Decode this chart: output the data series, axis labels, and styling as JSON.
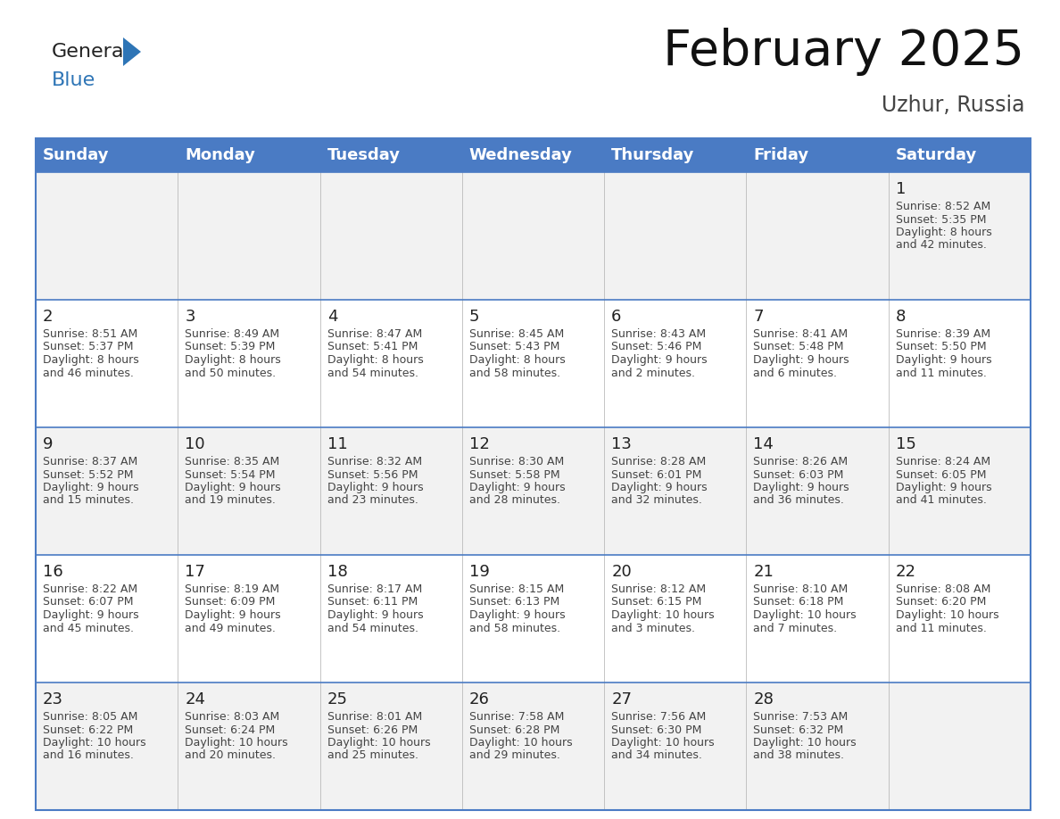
{
  "title": "February 2025",
  "subtitle": "Uzhur, Russia",
  "header_bg": "#4A7BC4",
  "header_text_color": "#FFFFFF",
  "days_of_week": [
    "Sunday",
    "Monday",
    "Tuesday",
    "Wednesday",
    "Thursday",
    "Friday",
    "Saturday"
  ],
  "title_fontsize": 40,
  "subtitle_fontsize": 17,
  "header_fontsize": 13,
  "cell_day_fontsize": 13,
  "cell_info_fontsize": 9,
  "logo_general_color": "#222222",
  "logo_blue_color": "#2E75B6",
  "logo_triangle_color": "#2E75B6",
  "grid_color": "#4A7BC4",
  "row0_bg": "#F2F2F2",
  "row1_bg": "#FFFFFF",
  "row2_bg": "#F2F2F2",
  "row3_bg": "#FFFFFF",
  "row4_bg": "#F2F2F2",
  "calendar": [
    [
      null,
      null,
      null,
      null,
      null,
      null,
      {
        "day": 1,
        "sunrise": "8:52 AM",
        "sunset": "5:35 PM",
        "daylight": "8 hours and 42 minutes."
      }
    ],
    [
      {
        "day": 2,
        "sunrise": "8:51 AM",
        "sunset": "5:37 PM",
        "daylight": "8 hours and 46 minutes."
      },
      {
        "day": 3,
        "sunrise": "8:49 AM",
        "sunset": "5:39 PM",
        "daylight": "8 hours and 50 minutes."
      },
      {
        "day": 4,
        "sunrise": "8:47 AM",
        "sunset": "5:41 PM",
        "daylight": "8 hours and 54 minutes."
      },
      {
        "day": 5,
        "sunrise": "8:45 AM",
        "sunset": "5:43 PM",
        "daylight": "8 hours and 58 minutes."
      },
      {
        "day": 6,
        "sunrise": "8:43 AM",
        "sunset": "5:46 PM",
        "daylight": "9 hours and 2 minutes."
      },
      {
        "day": 7,
        "sunrise": "8:41 AM",
        "sunset": "5:48 PM",
        "daylight": "9 hours and 6 minutes."
      },
      {
        "day": 8,
        "sunrise": "8:39 AM",
        "sunset": "5:50 PM",
        "daylight": "9 hours and 11 minutes."
      }
    ],
    [
      {
        "day": 9,
        "sunrise": "8:37 AM",
        "sunset": "5:52 PM",
        "daylight": "9 hours and 15 minutes."
      },
      {
        "day": 10,
        "sunrise": "8:35 AM",
        "sunset": "5:54 PM",
        "daylight": "9 hours and 19 minutes."
      },
      {
        "day": 11,
        "sunrise": "8:32 AM",
        "sunset": "5:56 PM",
        "daylight": "9 hours and 23 minutes."
      },
      {
        "day": 12,
        "sunrise": "8:30 AM",
        "sunset": "5:58 PM",
        "daylight": "9 hours and 28 minutes."
      },
      {
        "day": 13,
        "sunrise": "8:28 AM",
        "sunset": "6:01 PM",
        "daylight": "9 hours and 32 minutes."
      },
      {
        "day": 14,
        "sunrise": "8:26 AM",
        "sunset": "6:03 PM",
        "daylight": "9 hours and 36 minutes."
      },
      {
        "day": 15,
        "sunrise": "8:24 AM",
        "sunset": "6:05 PM",
        "daylight": "9 hours and 41 minutes."
      }
    ],
    [
      {
        "day": 16,
        "sunrise": "8:22 AM",
        "sunset": "6:07 PM",
        "daylight": "9 hours and 45 minutes."
      },
      {
        "day": 17,
        "sunrise": "8:19 AM",
        "sunset": "6:09 PM",
        "daylight": "9 hours and 49 minutes."
      },
      {
        "day": 18,
        "sunrise": "8:17 AM",
        "sunset": "6:11 PM",
        "daylight": "9 hours and 54 minutes."
      },
      {
        "day": 19,
        "sunrise": "8:15 AM",
        "sunset": "6:13 PM",
        "daylight": "9 hours and 58 minutes."
      },
      {
        "day": 20,
        "sunrise": "8:12 AM",
        "sunset": "6:15 PM",
        "daylight": "10 hours and 3 minutes."
      },
      {
        "day": 21,
        "sunrise": "8:10 AM",
        "sunset": "6:18 PM",
        "daylight": "10 hours and 7 minutes."
      },
      {
        "day": 22,
        "sunrise": "8:08 AM",
        "sunset": "6:20 PM",
        "daylight": "10 hours and 11 minutes."
      }
    ],
    [
      {
        "day": 23,
        "sunrise": "8:05 AM",
        "sunset": "6:22 PM",
        "daylight": "10 hours and 16 minutes."
      },
      {
        "day": 24,
        "sunrise": "8:03 AM",
        "sunset": "6:24 PM",
        "daylight": "10 hours and 20 minutes."
      },
      {
        "day": 25,
        "sunrise": "8:01 AM",
        "sunset": "6:26 PM",
        "daylight": "10 hours and 25 minutes."
      },
      {
        "day": 26,
        "sunrise": "7:58 AM",
        "sunset": "6:28 PM",
        "daylight": "10 hours and 29 minutes."
      },
      {
        "day": 27,
        "sunrise": "7:56 AM",
        "sunset": "6:30 PM",
        "daylight": "10 hours and 34 minutes."
      },
      {
        "day": 28,
        "sunrise": "7:53 AM",
        "sunset": "6:32 PM",
        "daylight": "10 hours and 38 minutes."
      },
      null
    ]
  ]
}
